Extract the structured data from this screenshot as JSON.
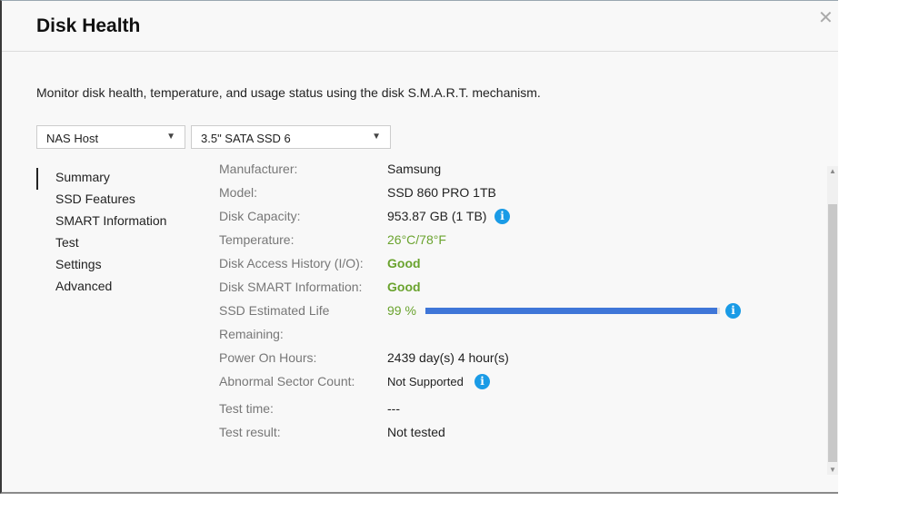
{
  "dialog": {
    "title": "Disk Health",
    "close_icon": "close-icon",
    "description": "Monitor disk health, temperature, and usage status using the disk S.M.A.R.T. mechanism.",
    "host_select": "NAS Host",
    "disk_select": "3.5\" SATA SSD 6"
  },
  "nav": [
    "Summary",
    "SSD Features",
    "SMART Information",
    "Test",
    "Settings",
    "Advanced"
  ],
  "summary": {
    "manufacturer": {
      "label": "Manufacturer:",
      "value": "Samsung"
    },
    "model": {
      "label": "Model:",
      "value": "SSD 860 PRO 1TB"
    },
    "capacity": {
      "label": "Disk Capacity:",
      "value": "953.87 GB (1 TB)"
    },
    "temperature": {
      "label": "Temperature:",
      "value": "26°C/78°F"
    },
    "access": {
      "label": "Disk Access History (I/O):",
      "value": "Good"
    },
    "smart": {
      "label": "Disk SMART Information:",
      "value": "Good"
    },
    "life": {
      "label_1": "SSD Estimated Life",
      "label_2": "Remaining:",
      "value": "99 %",
      "percent": 99
    },
    "power": {
      "label": "Power On Hours:",
      "value": "2439 day(s) 4 hour(s)"
    },
    "sector": {
      "label": "Abnormal Sector Count:",
      "value": "Not Supported"
    },
    "test_time": {
      "label": "Test time:",
      "value": "---"
    },
    "test_result": {
      "label": "Test result:",
      "value": "Not tested"
    }
  },
  "colors": {
    "good": "#6aa32e",
    "accent": "#1a9be6",
    "bar": "#3f76d8"
  }
}
